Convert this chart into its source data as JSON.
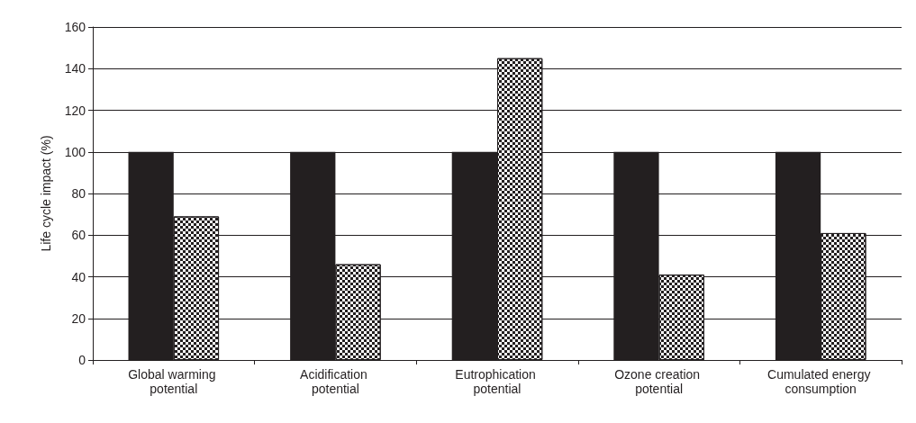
{
  "chart_data": {
    "type": "bar",
    "ylabel": "Life cycle impact (%)",
    "categories": [
      "Global warming potential",
      "Acidification potential",
      "Eutrophication potential",
      "Ozone creation potential",
      "Cumulated energy consumption"
    ],
    "series": [
      {
        "color": "#231f20",
        "values": [
          100,
          100,
          100,
          100,
          100
        ]
      },
      {
        "color": "#231f20",
        "values": [
          69,
          46,
          145,
          41,
          61
        ]
      }
    ],
    "ylim": [
      0,
      160
    ],
    "yticks": [
      0,
      20,
      40,
      60,
      80,
      100,
      120,
      140,
      160
    ],
    "grid": "y"
  }
}
